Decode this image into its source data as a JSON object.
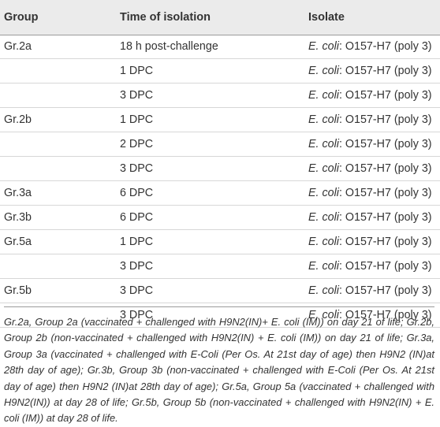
{
  "table": {
    "headers": [
      "Group",
      "Time of isolation",
      "Isolate"
    ],
    "rows": [
      {
        "group": "Gr.2a",
        "time": "18 h post-challenge",
        "organism": "E. coli",
        "strain": ": O157-H7 (poly 3)"
      },
      {
        "group": "",
        "time": "1 DPC",
        "organism": "E. coli",
        "strain": ": O157-H7 (poly 3)"
      },
      {
        "group": "",
        "time": "3 DPC",
        "organism": "E. coli",
        "strain": ": O157-H7 (poly 3)"
      },
      {
        "group": "Gr.2b",
        "time": "1 DPC",
        "organism": "E. coli",
        "strain": ": O157-H7 (poly 3)"
      },
      {
        "group": "",
        "time": "2 DPC",
        "organism": "E. coli",
        "strain": ": O157-H7 (poly 3)"
      },
      {
        "group": "",
        "time": "3 DPC",
        "organism": "E. coli",
        "strain": ": O157-H7 (poly 3)"
      },
      {
        "group": "Gr.3a",
        "time": "6 DPC",
        "organism": "E. coli",
        "strain": ": O157-H7 (poly 3)"
      },
      {
        "group": "Gr.3b",
        "time": "6 DPC",
        "organism": "E. coli",
        "strain": ": O157-H7 (poly 3)"
      },
      {
        "group": "Gr.5a",
        "time": "1 DPC",
        "organism": "E. coli",
        "strain": ": O157-H7 (poly 3)"
      },
      {
        "group": "",
        "time": "3 DPC",
        "organism": "E. coli",
        "strain": ": O157-H7 (poly 3)"
      },
      {
        "group": "Gr.5b",
        "time": "3 DPC",
        "organism": "E. coli",
        "strain": ": O157-H7 (poly 3)"
      },
      {
        "group": "",
        "time": "3 DPC",
        "organism": "E. coli",
        "strain": ": O157-H7 (poly 3)"
      }
    ]
  },
  "footnote": "Gr.2a, Group 2a (vaccinated + challenged with H9N2(IN)+ E. coli (IM)) on day 21 of life; Gr.2b, Group 2b (non-vaccinated + challenged with H9N2(IN) + E. coli (IM)) on day 21 of life; Gr.3a, Group 3a (vaccinated + challenged with E-Coli (Per Os. At 21st day of age) then H9N2 (IN)at 28th day of age); Gr.3b, Group 3b (non-vaccinated + challenged with E-Coli (Per Os. At 21st day of age) then H9N2 (IN)at 28th day of age); Gr.5a, Group 5a (vaccinated + challenged with H9N2(IN)) at day 28 of life; Gr.5b, Group 5b (non-vaccinated + challenged with H9N2(IN) + E. coli (IM)) at day 28 of life."
}
